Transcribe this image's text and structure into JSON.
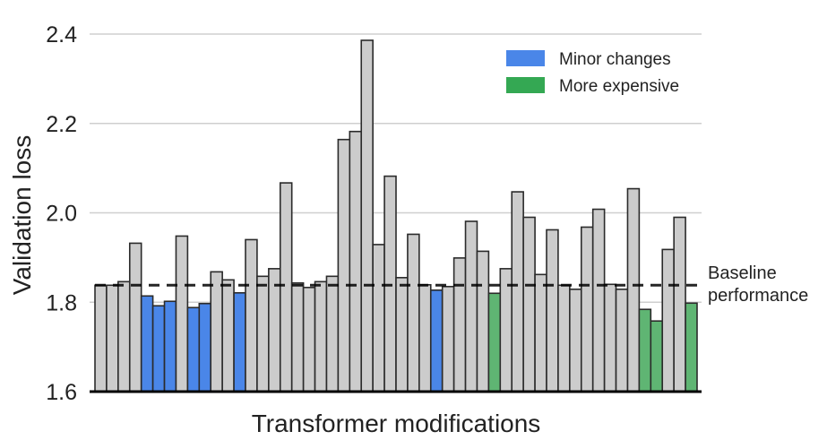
{
  "chart_data": {
    "type": "bar",
    "title": "",
    "xlabel": "Transformer modifications",
    "ylabel": "Validation loss",
    "ylim": [
      1.6,
      2.4
    ],
    "yticks": [
      "1.6",
      "1.8",
      "2.0",
      "2.2",
      "2.4"
    ],
    "grid": true,
    "legend_position": "top-right",
    "legend": [
      {
        "label": "Minor changes",
        "color": "#4a86e8"
      },
      {
        "label": "More expensive",
        "color": "#34a853"
      }
    ],
    "baseline": {
      "value": 1.838,
      "label_line1": "Baseline",
      "label_line2": "performance"
    },
    "default_color": "#cccccc",
    "values": [
      1.838,
      1.838,
      1.846,
      1.932,
      1.814,
      1.792,
      1.802,
      1.948,
      1.788,
      1.797,
      1.868,
      1.85,
      1.821,
      1.94,
      1.858,
      1.875,
      2.067,
      1.843,
      1.833,
      1.846,
      1.858,
      2.164,
      2.182,
      2.386,
      1.929,
      2.082,
      1.855,
      1.952,
      1.839,
      1.827,
      1.835,
      1.899,
      1.981,
      1.914,
      1.82,
      1.875,
      2.047,
      1.99,
      1.862,
      1.962,
      1.838,
      1.829,
      1.968,
      2.008,
      1.84,
      1.829,
      2.054,
      1.784,
      1.758,
      1.918,
      1.99,
      1.798
    ],
    "categories": [
      "gray",
      "gray",
      "gray",
      "gray",
      "blue",
      "blue",
      "blue",
      "gray",
      "blue",
      "blue",
      "gray",
      "gray",
      "blue",
      "gray",
      "gray",
      "gray",
      "gray",
      "gray",
      "gray",
      "gray",
      "gray",
      "gray",
      "gray",
      "gray",
      "gray",
      "gray",
      "gray",
      "gray",
      "gray",
      "blue",
      "gray",
      "gray",
      "gray",
      "gray",
      "green",
      "gray",
      "gray",
      "gray",
      "gray",
      "gray",
      "gray",
      "gray",
      "gray",
      "gray",
      "gray",
      "gray",
      "gray",
      "green",
      "green",
      "gray",
      "gray",
      "green"
    ],
    "category_colors": {
      "gray": "#cccccc",
      "blue": "#4a86e8",
      "green": "#5fb573"
    }
  }
}
